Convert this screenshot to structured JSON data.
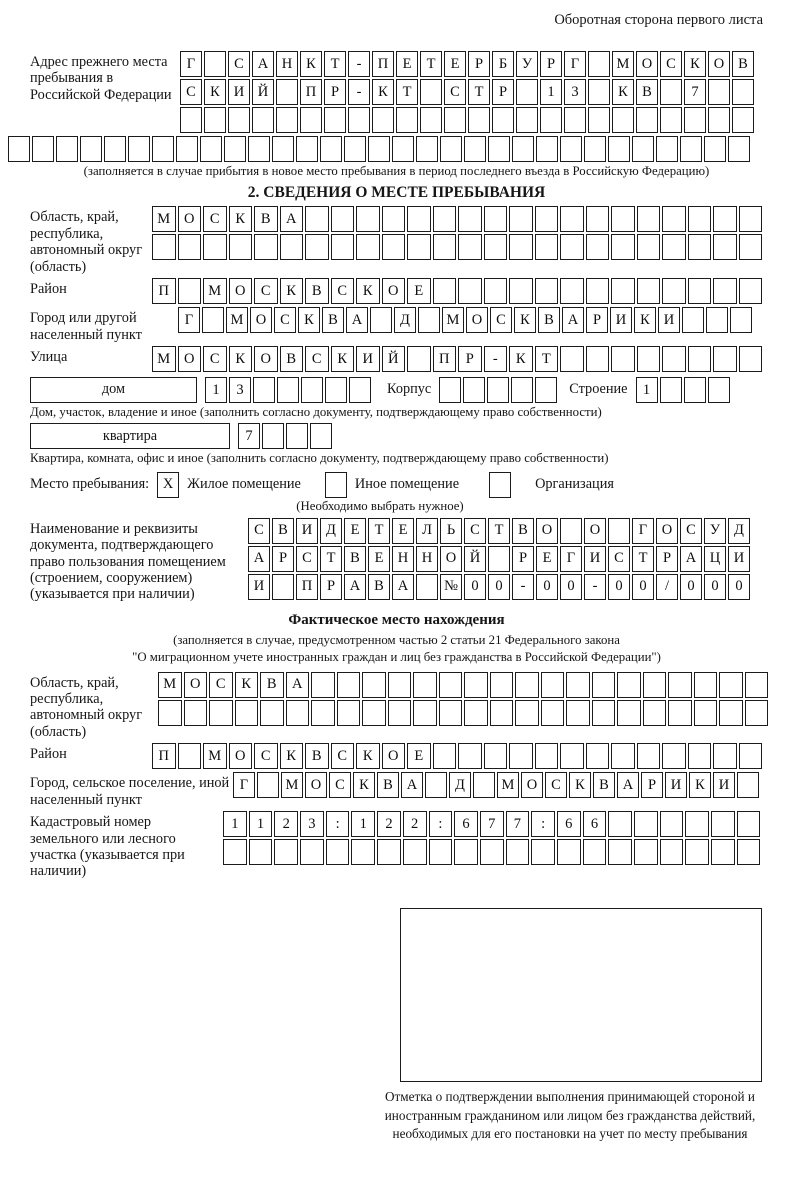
{
  "header_note": "Оборотная сторона первого листа",
  "prev_address": {
    "label": "Адрес прежнего места пребывания в Российской Федерации",
    "rows": [
      {
        "text": "Г САНКТ-ПЕТЕРБУРГ МОСКОВ",
        "count": 24
      },
      {
        "text": "СКИЙ ПР-КТ СТР 13 КВ 7",
        "count": 24
      },
      {
        "text": "",
        "count": 24
      }
    ],
    "overflow_row": {
      "text": "",
      "count": 31
    },
    "caption": "(заполняется в случае прибытия в новое место пребывания в период последнего въезда в Российскую Федерацию)"
  },
  "section2": {
    "title": "2. СВЕДЕНИЯ О МЕСТЕ ПРЕБЫВАНИЯ",
    "region": {
      "label": "Область, край, республика, автономный округ (область)",
      "rows": [
        {
          "text": "МОСКВА",
          "count": 24
        },
        {
          "text": "",
          "count": 24
        }
      ]
    },
    "district": {
      "label": "Район",
      "rows": [
        {
          "text": "П МОСКВСКОЕ",
          "count": 24
        }
      ]
    },
    "city": {
      "label": "Город или другой населенный пункт",
      "rows": [
        {
          "text": "Г МОСКВА Д МОСКВАРИКИ",
          "count": 24
        }
      ]
    },
    "street": {
      "label": "Улица",
      "rows": [
        {
          "text": "МОСКОВСКИЙ ПР-КТ",
          "count": 24
        }
      ]
    },
    "house": {
      "box_label": "дом",
      "cells": {
        "text": "13",
        "count": 7
      },
      "korpus_label": "Корпус",
      "korpus_cells": {
        "text": "",
        "count": 5
      },
      "stroenie_label": "Строение",
      "stroenie_cells": {
        "text": "1",
        "count": 4
      }
    },
    "house_caption": "Дом, участок, владение и иное (заполнить согласно документу, подтверждающему право собственности)",
    "apartment": {
      "box_label": "квартира",
      "cells": {
        "text": "7",
        "count": 4
      }
    },
    "apartment_caption": "Квартира, комната, офис и иное (заполнить согласно документу, подтверждающему право собственности)",
    "stay_place": {
      "label": "Место пребывания:",
      "options": [
        {
          "label": "Жилое помещение",
          "cell": {
            "text": "X",
            "count": 1
          }
        },
        {
          "label": "Иное помещение",
          "cell": {
            "text": "",
            "count": 1
          }
        },
        {
          "label": "Организация",
          "cell": {
            "text": "",
            "count": 1
          }
        }
      ],
      "note": "(Необходимо выбрать нужное)"
    },
    "document": {
      "label": "Наименование и реквизиты документа, подтверждающего право пользования помещением (строением, сооружением) (указывается при наличии)",
      "rows": [
        {
          "text": "СВИДЕТЕЛЬСТВО О ГОСУД",
          "count": 21
        },
        {
          "text": "АРСТВЕННОЙ РЕГИСТРАЦИ",
          "count": 21
        },
        {
          "text": "И ПРАВА №00-00-00/000",
          "count": 21
        }
      ]
    }
  },
  "actual_location": {
    "title": "Фактическое место нахождения",
    "caption_line1": "(заполняется в случае, предусмотренном частью 2 статьи 21 Федерального закона",
    "caption_line2": "\"О миграционном учете иностранных граждан и лиц без гражданства в Российской Федерации\")",
    "region": {
      "label": "Область, край, республика, автономный округ (область)",
      "rows": [
        {
          "text": "МОСКВА",
          "count": 24
        },
        {
          "text": "",
          "count": 24
        }
      ]
    },
    "district": {
      "label": "Район",
      "rows": [
        {
          "text": "П МОСКВСКОЕ",
          "count": 24
        }
      ]
    },
    "city": {
      "label": "Город, сельское поселение, иной населенный пункт",
      "rows": [
        {
          "text": "Г МОСКВА Д МОСКВАРИКИ",
          "count": 22
        }
      ]
    },
    "cadastre": {
      "label": "Кадастровый номер земельного или лесного участка (указывается при наличии)",
      "rows": [
        {
          "text": "1123:122:677:66",
          "count": 21
        },
        {
          "text": "",
          "count": 21
        }
      ]
    },
    "stamp_box_caption": "Отметка о подтверждении выполнения принимающей стороной и иностранным гражданином или лицом без гражданства действий, необходимых для его постановки на учет по месту пребывания"
  }
}
